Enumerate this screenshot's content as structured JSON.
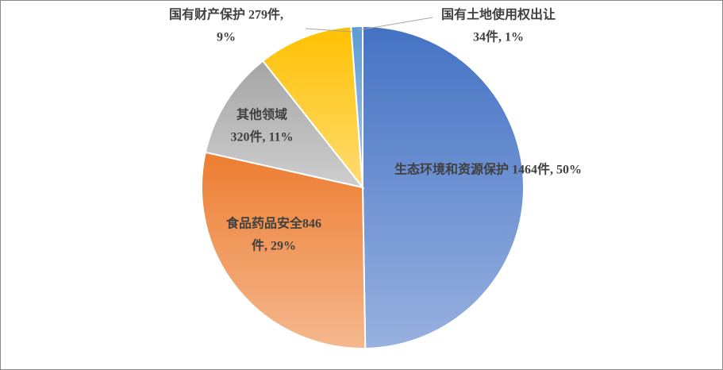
{
  "chart_data": {
    "type": "pie",
    "labels": [
      [
        "生态环境和资源保护 1464件, 50%"
      ],
      [
        "食品药品安全846",
        "件, 29%"
      ],
      [
        "其他领域",
        "320件, 11%"
      ],
      [
        "国有财产保护 279件,",
        "9%"
      ],
      [
        "国有土地使用权出让",
        "34件, 1%"
      ]
    ],
    "values": [
      1464,
      846,
      320,
      279,
      34
    ],
    "colors": [
      "#4472c4",
      "#ed7d31",
      "#a5a5a5",
      "#ffc000",
      "#5b9bd5"
    ]
  }
}
